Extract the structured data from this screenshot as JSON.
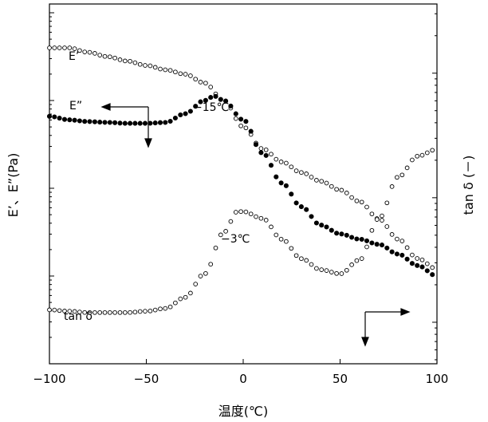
{
  "chart_data": {
    "type": "scatter",
    "xlabel": "温度(℃)",
    "ylabel_left": "E’、E”(Pa)",
    "ylabel_right": "tan δ (－)",
    "xlim": [
      -100,
      100
    ],
    "xticks": [
      "−100",
      "−50",
      "0",
      "50",
      "100"
    ],
    "y_scale": "log",
    "grid": false,
    "series": [
      {
        "name": "E’",
        "marker": "open-circle",
        "axis": "left",
        "x": [
          -100,
          -90,
          -80,
          -70,
          -60,
          -50,
          -40,
          -30,
          -20,
          -10,
          0,
          10,
          20,
          30,
          40,
          50,
          60,
          70,
          80,
          90,
          100
        ],
        "y": [
          2.6,
          2.6,
          2.55,
          2.5,
          2.45,
          2.4,
          2.35,
          2.3,
          2.2,
          2.0,
          1.7,
          1.45,
          1.3,
          1.18,
          1.08,
          0.98,
          0.85,
          0.65,
          0.42,
          0.2,
          0.08
        ]
      },
      {
        "name": "E”",
        "marker": "filled-circle",
        "axis": "left",
        "x": [
          -100,
          -90,
          -80,
          -70,
          -60,
          -50,
          -40,
          -30,
          -20,
          -15,
          -10,
          0,
          10,
          20,
          30,
          40,
          50,
          60,
          70,
          80,
          90,
          100
        ],
        "y": [
          1.82,
          1.78,
          1.76,
          1.75,
          1.74,
          1.74,
          1.75,
          1.85,
          2.0,
          2.05,
          2.0,
          1.78,
          1.4,
          1.06,
          0.79,
          0.58,
          0.48,
          0.42,
          0.36,
          0.25,
          0.12,
          0.0
        ]
      },
      {
        "name": "tan δ",
        "marker": "open-circle",
        "axis": "right",
        "x": [
          -100,
          -90,
          -80,
          -70,
          -60,
          -50,
          -40,
          -30,
          -20,
          -10,
          -3,
          0,
          10,
          20,
          30,
          40,
          50,
          60,
          70,
          80,
          90,
          100
        ],
        "y": [
          0.09,
          0.08,
          0.07,
          0.07,
          0.07,
          0.08,
          0.1,
          0.18,
          0.35,
          0.65,
          0.8,
          0.8,
          0.75,
          0.6,
          0.46,
          0.38,
          0.35,
          0.45,
          0.75,
          1.05,
          1.2,
          1.25
        ]
      }
    ],
    "annotations": {
      "e_prime_label": "E’",
      "e_double_label": "E”",
      "tan_label": "tan δ",
      "peak_e_double": "−15℃",
      "peak_tan": "−3℃"
    }
  }
}
